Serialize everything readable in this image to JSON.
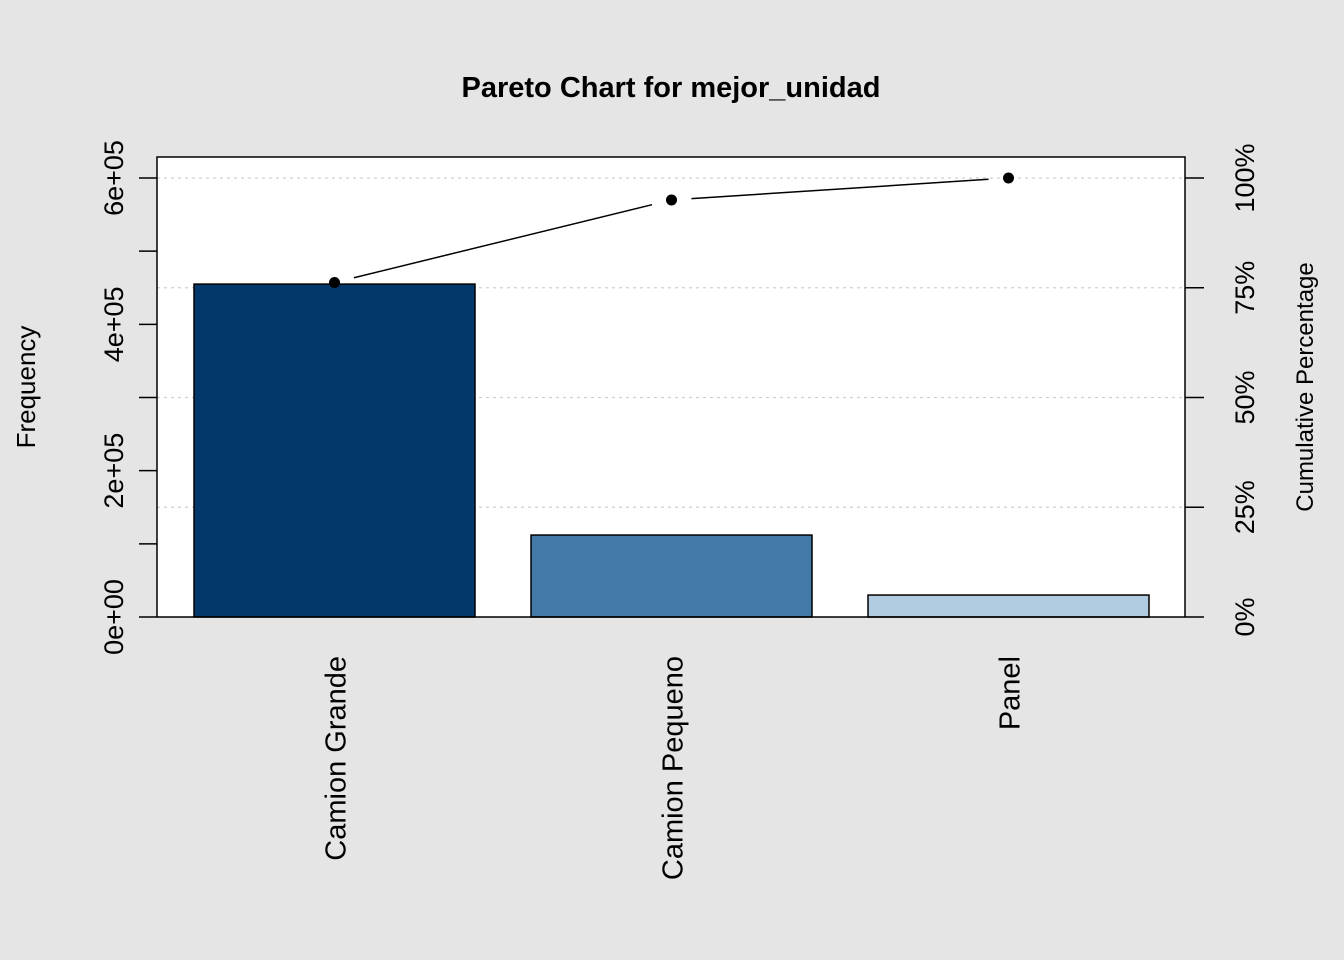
{
  "chart_data": {
    "type": "bar",
    "title": "Pareto Chart for mejor_unidad",
    "xlabel": "",
    "ylabel": "Frequency",
    "y2label": "Cumulative Percentage",
    "categories": [
      "Camion Grande",
      "Camion Pequeno",
      "Panel"
    ],
    "values": [
      455000,
      112000,
      30000
    ],
    "bar_colors": [
      "#03386b",
      "#4279a6",
      "#b1cbe1"
    ],
    "cumulative_percent": [
      76.2,
      95.0,
      100.0
    ],
    "ylim": [
      0,
      640000
    ],
    "y_ticks": [
      0,
      200000,
      400000,
      600000
    ],
    "y_tick_labels": [
      "0e+00",
      "2e+05",
      "4e+05",
      "6e+05"
    ],
    "y_minor_ticks": [
      100000,
      300000,
      500000
    ],
    "y2lim": [
      0,
      100
    ],
    "y2_ticks": [
      0,
      25,
      50,
      75,
      100
    ],
    "y2_tick_labels": [
      "0%",
      "25%",
      "50%",
      "75%",
      "100%"
    ],
    "grid": true,
    "legend": "none"
  }
}
